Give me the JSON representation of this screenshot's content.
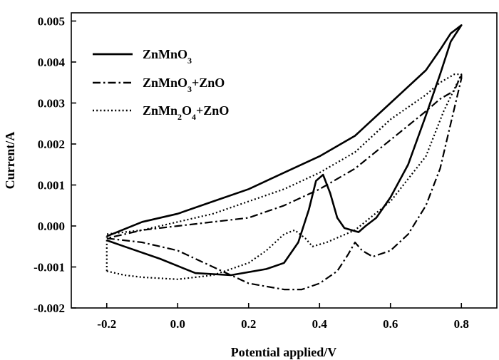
{
  "chart_data": {
    "type": "line",
    "title": "",
    "xlabel": "Potential applied/V",
    "ylabel": "Current/A",
    "xlim": [
      -0.3,
      0.9
    ],
    "ylim": [
      -0.002,
      0.0052
    ],
    "xticks": [
      "-0.2",
      "0.0",
      "0.2",
      "0.4",
      "0.6",
      "0.8"
    ],
    "xtick_values": [
      -0.2,
      0.0,
      0.2,
      0.4,
      0.6,
      0.8
    ],
    "yticks": [
      "-0.002",
      "-0.001",
      "0.000",
      "0.001",
      "0.002",
      "0.003",
      "0.004",
      "0.005"
    ],
    "ytick_values": [
      -0.002,
      -0.001,
      0.0,
      0.001,
      0.002,
      0.003,
      0.004,
      0.005
    ],
    "grid": false,
    "legend": "top-left",
    "series": [
      {
        "name": "ZnMnO3",
        "label_base": "ZnMnO",
        "label_parts": [
          [
            "ZnMnO",
            ""
          ],
          [
            "3",
            "sub"
          ]
        ],
        "style": "solid",
        "x": [
          -0.2,
          -0.15,
          -0.05,
          0.05,
          0.15,
          0.25,
          0.3,
          0.34,
          0.37,
          0.39,
          0.41,
          0.43,
          0.45,
          0.47,
          0.49,
          0.51,
          0.53,
          0.56,
          0.6,
          0.65,
          0.7,
          0.74,
          0.77,
          0.8,
          0.77,
          0.74,
          0.7,
          0.6,
          0.5,
          0.4,
          0.3,
          0.2,
          0.1,
          0.0,
          -0.1,
          -0.2
        ],
        "y": [
          -0.00035,
          -0.0005,
          -0.0008,
          -0.00115,
          -0.0012,
          -0.00105,
          -0.0009,
          -0.0004,
          0.0004,
          0.0011,
          0.00125,
          0.0008,
          0.0002,
          -5e-05,
          -0.0001,
          -0.00015,
          0.0,
          0.0002,
          0.0007,
          0.0015,
          0.0027,
          0.0037,
          0.0045,
          0.0049,
          0.0047,
          0.0043,
          0.0038,
          0.003,
          0.0022,
          0.0017,
          0.0013,
          0.0009,
          0.0006,
          0.0003,
          0.0001,
          -0.00025
        ]
      },
      {
        "name": "ZnMnO3+ZnO",
        "label_base": "ZnMnO+ZnO",
        "label_parts": [
          [
            "ZnMnO",
            ""
          ],
          [
            "3",
            "sub"
          ],
          [
            "+ZnO",
            ""
          ]
        ],
        "style": "dashdot",
        "x": [
          -0.2,
          -0.1,
          0.0,
          0.1,
          0.2,
          0.3,
          0.35,
          0.4,
          0.45,
          0.48,
          0.5,
          0.52,
          0.55,
          0.6,
          0.65,
          0.7,
          0.74,
          0.77,
          0.8,
          0.8,
          0.78,
          0.74,
          0.7,
          0.6,
          0.5,
          0.4,
          0.3,
          0.2,
          0.1,
          0.0,
          -0.1,
          -0.2
        ],
        "y": [
          -0.0003,
          -0.0004,
          -0.0006,
          -0.001,
          -0.0014,
          -0.00155,
          -0.00155,
          -0.0014,
          -0.0011,
          -0.0007,
          -0.0004,
          -0.0006,
          -0.00075,
          -0.0006,
          -0.0002,
          0.0005,
          0.0014,
          0.0025,
          0.0036,
          0.0037,
          0.0033,
          0.0031,
          0.0028,
          0.0021,
          0.0014,
          0.0009,
          0.0005,
          0.0002,
          0.0001,
          0.0,
          -0.0001,
          -0.0003
        ]
      },
      {
        "name": "ZnMn2O4+ZnO",
        "label_base": "ZnMnO+ZnO",
        "label_parts": [
          [
            "ZnMn",
            ""
          ],
          [
            "2",
            "sub"
          ],
          [
            "O",
            ""
          ],
          [
            "4",
            "sub"
          ],
          [
            "+ZnO",
            ""
          ]
        ],
        "style": "dotted",
        "x": [
          -0.2,
          -0.15,
          -0.1,
          0.0,
          0.1,
          0.2,
          0.25,
          0.3,
          0.33,
          0.36,
          0.38,
          0.42,
          0.5,
          0.6,
          0.7,
          0.75,
          0.8,
          0.78,
          0.74,
          0.7,
          0.6,
          0.5,
          0.4,
          0.3,
          0.2,
          0.1,
          0.0,
          -0.1,
          -0.2,
          -0.2
        ],
        "y": [
          -0.0011,
          -0.0012,
          -0.00125,
          -0.0013,
          -0.0012,
          -0.0009,
          -0.0006,
          -0.0002,
          -0.0001,
          -0.0003,
          -0.0005,
          -0.0004,
          -0.0001,
          0.0006,
          0.0017,
          0.0028,
          0.0037,
          0.0037,
          0.0035,
          0.0032,
          0.0026,
          0.0018,
          0.0013,
          0.0009,
          0.0006,
          0.0003,
          0.0001,
          -0.0001,
          -0.0002,
          -0.0011
        ]
      }
    ]
  }
}
